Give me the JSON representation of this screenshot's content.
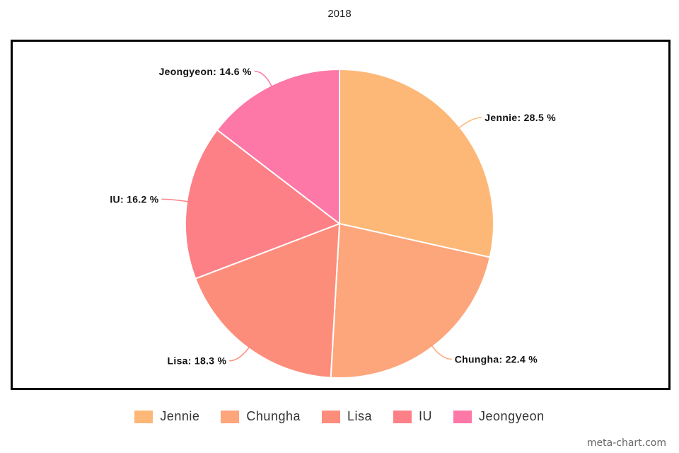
{
  "chart_data": {
    "type": "pie",
    "title": "2018",
    "slices": [
      {
        "label": "Jennie",
        "value": 28.5,
        "display": "Jennie: 28.5 %",
        "color": "#FDB877"
      },
      {
        "label": "Chungha",
        "value": 22.4,
        "display": "Chungha: 22.4 %",
        "color": "#FDA57B"
      },
      {
        "label": "Lisa",
        "value": 18.3,
        "display": "Lisa: 18.3 %",
        "color": "#FD8D7B"
      },
      {
        "label": "IU",
        "value": 16.2,
        "display": "IU: 16.2 %",
        "color": "#FD8087"
      },
      {
        "label": "Jeongyeon",
        "value": 14.6,
        "display": "Jeongyeon: 14.6 %",
        "color": "#FD77A7"
      }
    ],
    "legend_position": "bottom"
  },
  "watermark": "meta-chart.com"
}
